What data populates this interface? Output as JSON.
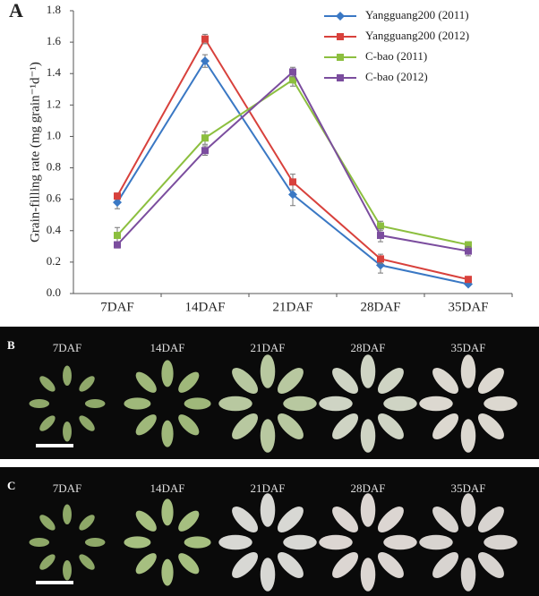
{
  "chart_data": {
    "type": "line",
    "panel_label": "A",
    "y_label": "Grain-filling rate (mg grain⁻¹d⁻¹)",
    "categories": [
      "7DAF",
      "14DAF",
      "21DAF",
      "28DAF",
      "35DAF"
    ],
    "ylim": [
      0,
      1.8
    ],
    "yticks": [
      {
        "value": 0,
        "label": "0.0"
      },
      0.2,
      0.4,
      0.6,
      0.8,
      {
        "value": 1,
        "label": "1.0"
      },
      1.2,
      1.4,
      1.6,
      1.8
    ],
    "legend": "upper right",
    "series": [
      {
        "name": "Yangguang200 (2011)",
        "color": "#3a78c4",
        "marker": "diamond",
        "values": [
          0.58,
          1.48,
          0.63,
          0.18,
          0.06
        ],
        "errors": [
          0.04,
          0.04,
          0.07,
          0.05,
          0.01
        ]
      },
      {
        "name": "Yangguang200 (2012)",
        "color": "#d8413c",
        "marker": "square",
        "values": [
          0.62,
          1.62,
          0.71,
          0.22,
          0.09
        ],
        "errors": [
          0.02,
          0.03,
          0.05,
          0.03,
          0.01
        ]
      },
      {
        "name": "C-bao (2011)",
        "color": "#8cbf3f",
        "marker": "square",
        "values": [
          0.37,
          0.99,
          1.36,
          0.43,
          0.31
        ],
        "errors": [
          0.05,
          0.04,
          0.04,
          0.03,
          0.02
        ]
      },
      {
        "name": "C-bao (2012)",
        "color": "#7b4d9e",
        "marker": "square",
        "values": [
          0.31,
          0.91,
          1.41,
          0.37,
          0.27
        ],
        "errors": [
          0.02,
          0.03,
          0.03,
          0.04,
          0.03
        ]
      }
    ]
  },
  "photos": [
    {
      "label": "B",
      "stages": [
        "7DAF",
        "14DAF",
        "21DAF",
        "28DAF",
        "35DAF"
      ]
    },
    {
      "label": "C",
      "stages": [
        "7DAF",
        "14DAF",
        "21DAF",
        "28DAF",
        "35DAF"
      ]
    }
  ]
}
